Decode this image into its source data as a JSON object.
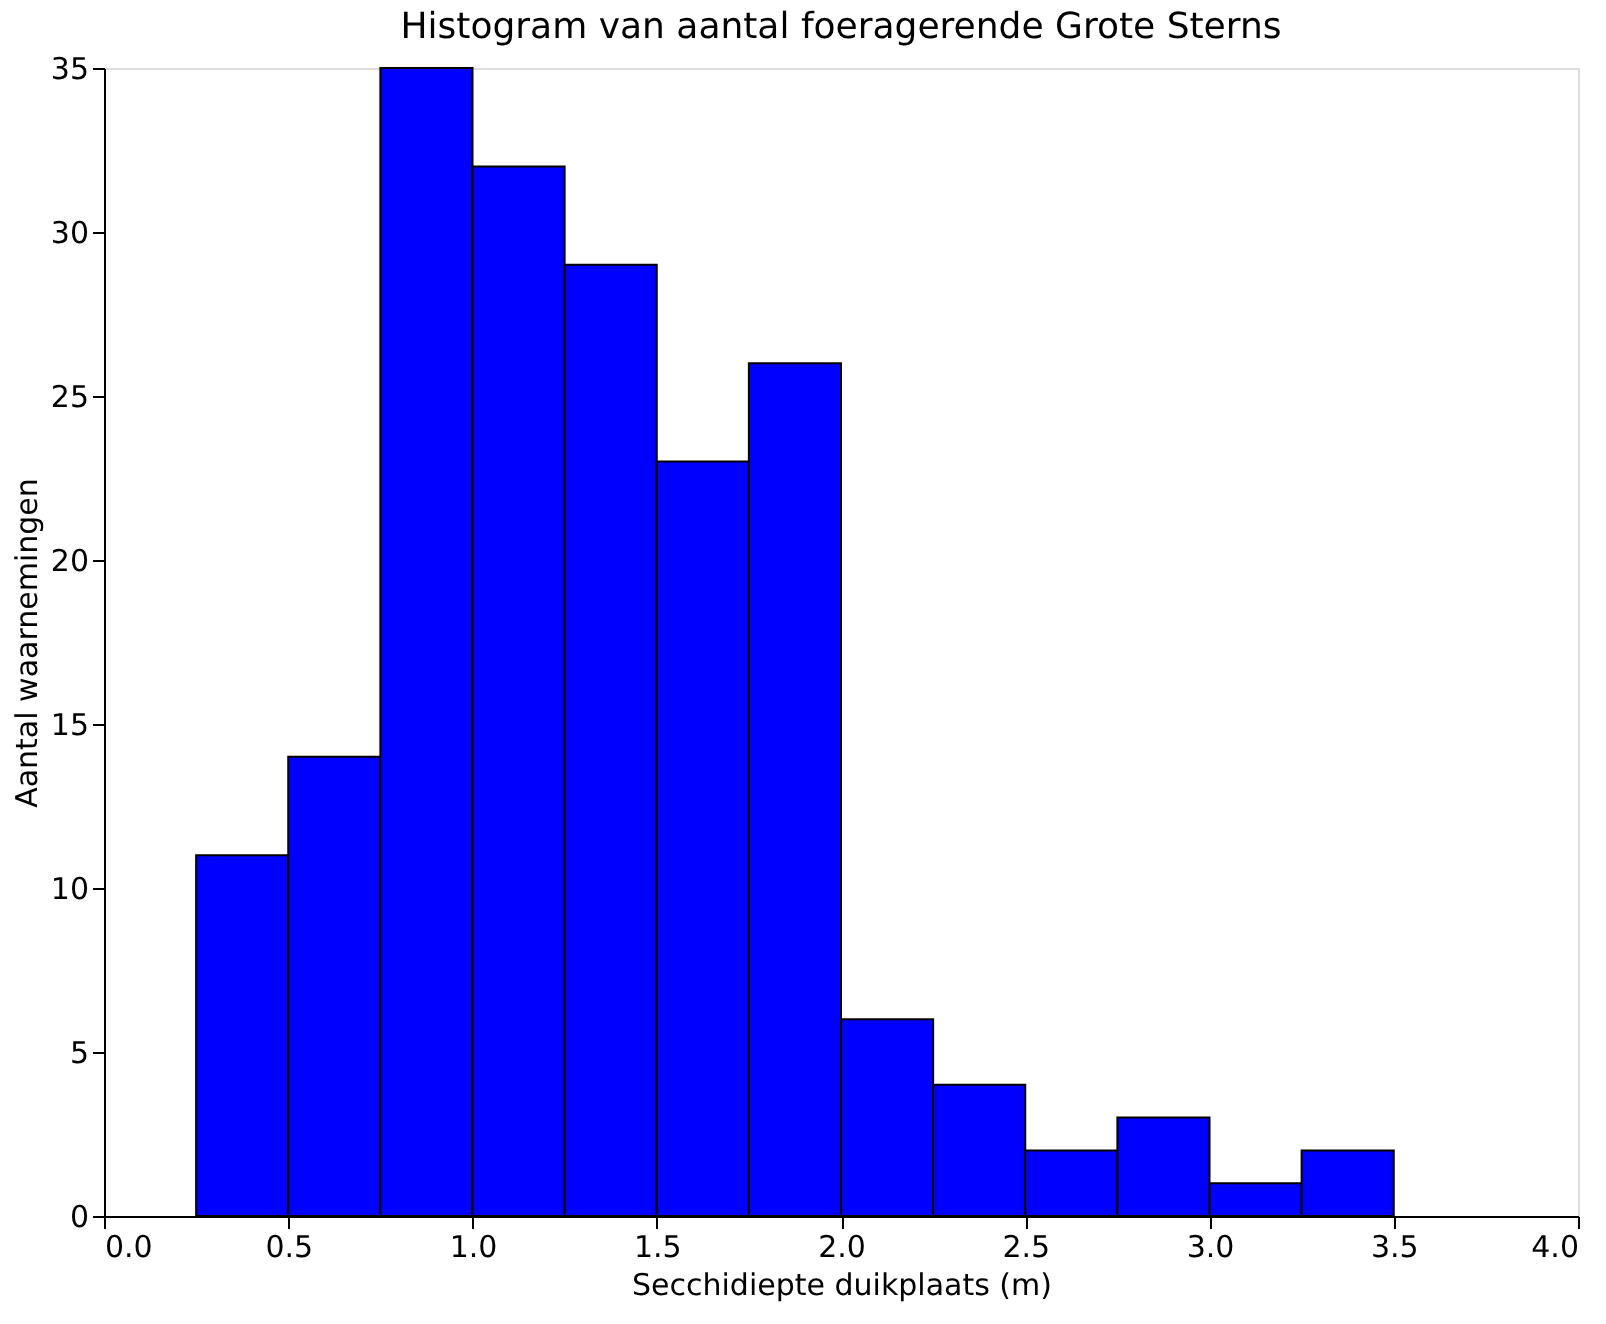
{
  "chart_data": {
    "type": "histogram",
    "title": "Histogram van aantal foeragerende Grote Sterns",
    "xlabel": "Secchidiepte duikplaats (m)",
    "ylabel": "Aantal waarnemingen",
    "bins": [
      0.25,
      0.5,
      0.75,
      1.0,
      1.25,
      1.5,
      1.75,
      2.0,
      2.25,
      2.5,
      2.75,
      3.0,
      3.25,
      3.5
    ],
    "values": [
      11,
      14,
      35,
      32,
      29,
      23,
      26,
      6,
      4,
      2,
      3,
      1,
      2
    ],
    "color": "#0000ff",
    "xlim": [
      0.0,
      4.0
    ],
    "xticks": [
      {
        "value": 0,
        "label": "0.0"
      },
      0.5,
      {
        "value": 1,
        "label": "1.0"
      },
      1.5,
      {
        "value": 2,
        "label": "2.0"
      },
      2.5,
      {
        "value": 3,
        "label": "3.0"
      },
      3.5,
      {
        "value": 4,
        "label": "4.0"
      }
    ],
    "ylim": [
      0,
      35
    ],
    "yticks": [
      0,
      5,
      10,
      15,
      20,
      25,
      30,
      35
    ],
    "grid": false
  }
}
